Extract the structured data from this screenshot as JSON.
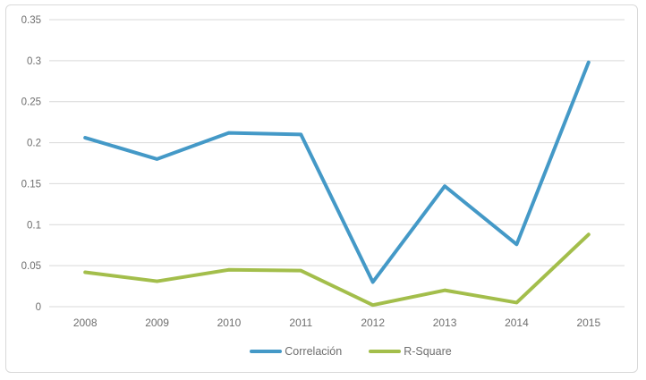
{
  "chart": {
    "background": "#ffffff",
    "frame_border_color": "#d9d9d9",
    "grid_color": "#d9d9d9",
    "tick_label_color": "#6e6e6e",
    "legend_text_color": "#6e6e6e"
  },
  "chart_data": {
    "type": "line",
    "title": "",
    "xlabel": "",
    "ylabel": "",
    "categories": [
      "2008",
      "2009",
      "2010",
      "2011",
      "2012",
      "2013",
      "2014",
      "2015"
    ],
    "series": [
      {
        "name": "Correlación",
        "color": "#4499c7",
        "values": [
          0.206,
          0.18,
          0.212,
          0.21,
          0.03,
          0.147,
          0.076,
          0.298
        ]
      },
      {
        "name": "R-Square",
        "color": "#a3be4b",
        "values": [
          0.042,
          0.031,
          0.045,
          0.044,
          0.002,
          0.02,
          0.005,
          0.088
        ]
      }
    ],
    "ylim": [
      0,
      0.35
    ],
    "yticks": [
      0,
      0.05,
      0.1,
      0.15,
      0.2,
      0.25,
      0.3,
      0.35
    ],
    "ytick_labels": [
      "0",
      "0.05",
      "0.1",
      "0.15",
      "0.2",
      "0.25",
      "0.3",
      "0.35"
    ],
    "grid": true,
    "legend_position": "bottom"
  }
}
